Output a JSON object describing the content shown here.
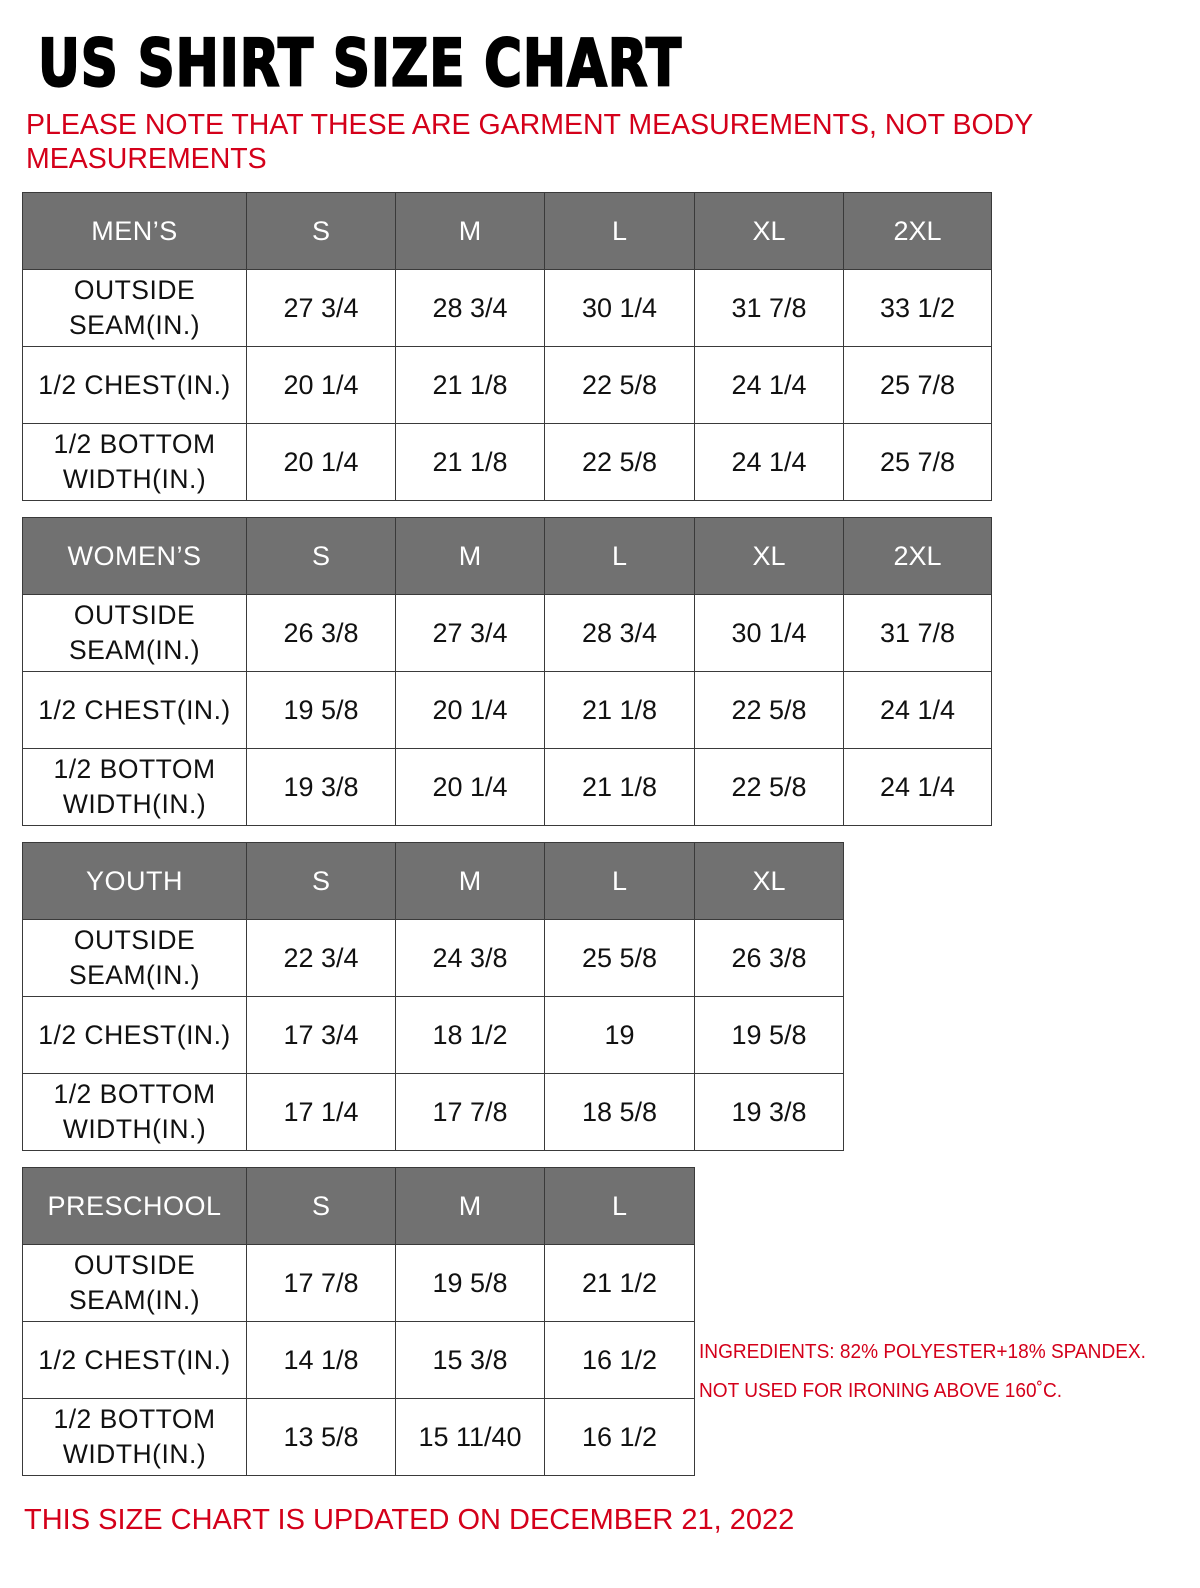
{
  "title": "US SHIRT SIZE CHART",
  "note": "PLEASE NOTE THAT THESE ARE GARMENT MEASUREMENTS, NOT BODY MEASUREMENTS",
  "colors": {
    "header_bg": "#717171",
    "note_red": "#d4001a"
  },
  "tables": [
    {
      "category": "MEN’S",
      "sizes": [
        "S",
        "M",
        "L",
        "XL",
        "2XL"
      ],
      "rows": [
        {
          "label": "OUTSIDE SEAM(IN.)",
          "values": [
            "27 3/4",
            "28 3/4",
            "30 1/4",
            "31 7/8",
            "33 1/2"
          ]
        },
        {
          "label": "1/2 CHEST(IN.)",
          "values": [
            "20 1/4",
            "21 1/8",
            "22 5/8",
            "24 1/4",
            "25 7/8"
          ]
        },
        {
          "label": "1/2 BOTTOM WIDTH(IN.)",
          "values": [
            "20 1/4",
            "21 1/8",
            "22 5/8",
            "24 1/4",
            "25 7/8"
          ]
        }
      ]
    },
    {
      "category": "WOMEN’S",
      "sizes": [
        "S",
        "M",
        "L",
        "XL",
        "2XL"
      ],
      "rows": [
        {
          "label": "OUTSIDE SEAM(IN.)",
          "values": [
            "26 3/8",
            "27 3/4",
            "28 3/4",
            "30 1/4",
            "31 7/8"
          ]
        },
        {
          "label": "1/2 CHEST(IN.)",
          "values": [
            "19 5/8",
            "20 1/4",
            "21 1/8",
            "22 5/8",
            "24 1/4"
          ]
        },
        {
          "label": "1/2 BOTTOM WIDTH(IN.)",
          "values": [
            "19 3/8",
            "20 1/4",
            "21 1/8",
            "22 5/8",
            "24 1/4"
          ]
        }
      ]
    },
    {
      "category": "YOUTH",
      "sizes": [
        "S",
        "M",
        "L",
        "XL"
      ],
      "rows": [
        {
          "label": "OUTSIDE SEAM(IN.)",
          "values": [
            "22 3/4",
            "24 3/8",
            "25 5/8",
            "26 3/8"
          ]
        },
        {
          "label": "1/2 CHEST(IN.)",
          "values": [
            "17 3/4",
            "18 1/2",
            "19",
            "19 5/8"
          ]
        },
        {
          "label": "1/2 BOTTOM WIDTH(IN.)",
          "values": [
            "17 1/4",
            "17 7/8",
            "18 5/8",
            "19 3/8"
          ]
        }
      ]
    },
    {
      "category": "PRESCHOOL",
      "sizes": [
        "S",
        "M",
        "L"
      ],
      "rows": [
        {
          "label": "OUTSIDE SEAM(IN.)",
          "values": [
            "17 7/8",
            "19 5/8",
            "21 1/2"
          ]
        },
        {
          "label": "1/2 CHEST(IN.)",
          "values": [
            "14 1/8",
            "15 3/8",
            "16 1/2"
          ]
        },
        {
          "label": "1/2 BOTTOM WIDTH(IN.)",
          "values": [
            "13 5/8",
            "15 11/40",
            "16 1/2"
          ]
        }
      ]
    }
  ],
  "side_notes": [
    "INGREDIENTS: 82% POLYESTER+18% SPANDEX.",
    "NOT USED FOR IRONING ABOVE 160˚C."
  ],
  "footer": "THIS SIZE CHART IS UPDATED ON DECEMBER 21, 2022"
}
